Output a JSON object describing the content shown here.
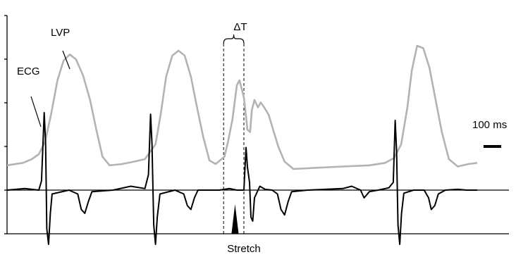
{
  "chart_data": {
    "type": "line",
    "title": "",
    "xlabel": "",
    "ylabel": "",
    "labels": {
      "lvp": "LVP",
      "ecg": "ECG",
      "delta_t": "ΔT",
      "scale_bar": "100 ms",
      "stretch": "Stretch"
    },
    "units": {
      "x": "ms"
    },
    "scale_bar_ms": 100,
    "x_range_ms": [
      0,
      2720
    ],
    "grid": false,
    "legend": "none",
    "series": [
      {
        "name": "LVP",
        "color": "#b3b3b3",
        "points": [
          [
            0,
            0.03
          ],
          [
            90,
            0.05
          ],
          [
            140,
            0.08
          ],
          [
            180,
            0.12
          ],
          [
            215,
            0.22
          ],
          [
            250,
            0.45
          ],
          [
            285,
            0.72
          ],
          [
            320,
            0.88
          ],
          [
            355,
            0.93
          ],
          [
            390,
            0.89
          ],
          [
            430,
            0.76
          ],
          [
            470,
            0.56
          ],
          [
            505,
            0.32
          ],
          [
            540,
            0.1
          ],
          [
            580,
            0.03
          ],
          [
            650,
            0.04
          ],
          [
            720,
            0.06
          ],
          [
            780,
            0.08
          ],
          [
            840,
            0.2
          ],
          [
            870,
            0.45
          ],
          [
            900,
            0.75
          ],
          [
            935,
            0.92
          ],
          [
            970,
            0.96
          ],
          [
            1005,
            0.92
          ],
          [
            1040,
            0.75
          ],
          [
            1075,
            0.5
          ],
          [
            1110,
            0.26
          ],
          [
            1145,
            0.07
          ],
          [
            1180,
            0.04
          ],
          [
            1230,
            0.1
          ],
          [
            1250,
            0.22
          ],
          [
            1275,
            0.4
          ],
          [
            1300,
            0.68
          ],
          [
            1315,
            0.72
          ],
          [
            1340,
            0.58
          ],
          [
            1360,
            0.32
          ],
          [
            1375,
            0.3
          ],
          [
            1385,
            0.48
          ],
          [
            1400,
            0.56
          ],
          [
            1420,
            0.5
          ],
          [
            1435,
            0.54
          ],
          [
            1455,
            0.5
          ],
          [
            1480,
            0.44
          ],
          [
            1505,
            0.32
          ],
          [
            1535,
            0.18
          ],
          [
            1570,
            0.06
          ],
          [
            1620,
            0.0
          ],
          [
            1750,
            0.01
          ],
          [
            1900,
            0.02
          ],
          [
            2050,
            0.03
          ],
          [
            2140,
            0.05
          ],
          [
            2190,
            0.09
          ],
          [
            2230,
            0.2
          ],
          [
            2265,
            0.5
          ],
          [
            2290,
            0.8
          ],
          [
            2320,
            1.0
          ],
          [
            2355,
            0.98
          ],
          [
            2390,
            0.82
          ],
          [
            2425,
            0.56
          ],
          [
            2460,
            0.3
          ],
          [
            2500,
            0.08
          ],
          [
            2550,
            0.02
          ],
          [
            2610,
            0.04
          ],
          [
            2660,
            0.05
          ]
        ]
      },
      {
        "name": "ECG",
        "color": "#000000",
        "points": [
          [
            0,
            0.0
          ],
          [
            100,
            0.02
          ],
          [
            180,
            0.0
          ],
          [
            195,
            0.12
          ],
          [
            210,
            1.0
          ],
          [
            218,
            0.6
          ],
          [
            225,
            -0.5
          ],
          [
            235,
            -0.7
          ],
          [
            245,
            -0.3
          ],
          [
            255,
            -0.05
          ],
          [
            350,
            0.0
          ],
          [
            400,
            -0.05
          ],
          [
            420,
            -0.25
          ],
          [
            440,
            -0.3
          ],
          [
            460,
            -0.15
          ],
          [
            480,
            -0.02
          ],
          [
            600,
            0.0
          ],
          [
            700,
            0.05
          ],
          [
            780,
            0.02
          ],
          [
            800,
            0.2
          ],
          [
            812,
            0.98
          ],
          [
            820,
            0.6
          ],
          [
            830,
            -0.45
          ],
          [
            840,
            -0.7
          ],
          [
            850,
            -0.35
          ],
          [
            865,
            -0.05
          ],
          [
            950,
            0.0
          ],
          [
            1000,
            -0.05
          ],
          [
            1020,
            -0.2
          ],
          [
            1040,
            -0.25
          ],
          [
            1060,
            -0.1
          ],
          [
            1080,
            0.0
          ],
          [
            1200,
            0.0
          ],
          [
            1260,
            0.02
          ],
          [
            1300,
            0.0
          ],
          [
            1340,
            0.0
          ],
          [
            1352,
            0.55
          ],
          [
            1360,
            0.3
          ],
          [
            1372,
            0.1
          ],
          [
            1380,
            -0.35
          ],
          [
            1390,
            -0.4
          ],
          [
            1400,
            -0.1
          ],
          [
            1430,
            0.05
          ],
          [
            1460,
            0.01
          ],
          [
            1500,
            0.0
          ],
          [
            1530,
            -0.05
          ],
          [
            1550,
            -0.25
          ],
          [
            1570,
            -0.32
          ],
          [
            1590,
            -0.15
          ],
          [
            1610,
            -0.02
          ],
          [
            1700,
            0.0
          ],
          [
            1900,
            0.02
          ],
          [
            1950,
            0.05
          ],
          [
            2000,
            0.0
          ],
          [
            2020,
            -0.1
          ],
          [
            2050,
            -0.02
          ],
          [
            2100,
            0.0
          ],
          [
            2160,
            0.03
          ],
          [
            2185,
            0.1
          ],
          [
            2196,
            0.9
          ],
          [
            2204,
            0.5
          ],
          [
            2212,
            -0.45
          ],
          [
            2222,
            -0.7
          ],
          [
            2232,
            -0.3
          ],
          [
            2245,
            -0.04
          ],
          [
            2300,
            0.0
          ],
          [
            2360,
            0.0
          ],
          [
            2385,
            -0.1
          ],
          [
            2400,
            -0.25
          ],
          [
            2420,
            -0.2
          ],
          [
            2440,
            -0.05
          ],
          [
            2480,
            0.0
          ],
          [
            2550,
            0.01
          ],
          [
            2600,
            0.0
          ],
          [
            2660,
            0.0
          ]
        ]
      }
    ],
    "stretch_window_ms": [
      1225,
      1340
    ],
    "stretch_pulse_ms": [
      1270,
      1310
    ]
  }
}
